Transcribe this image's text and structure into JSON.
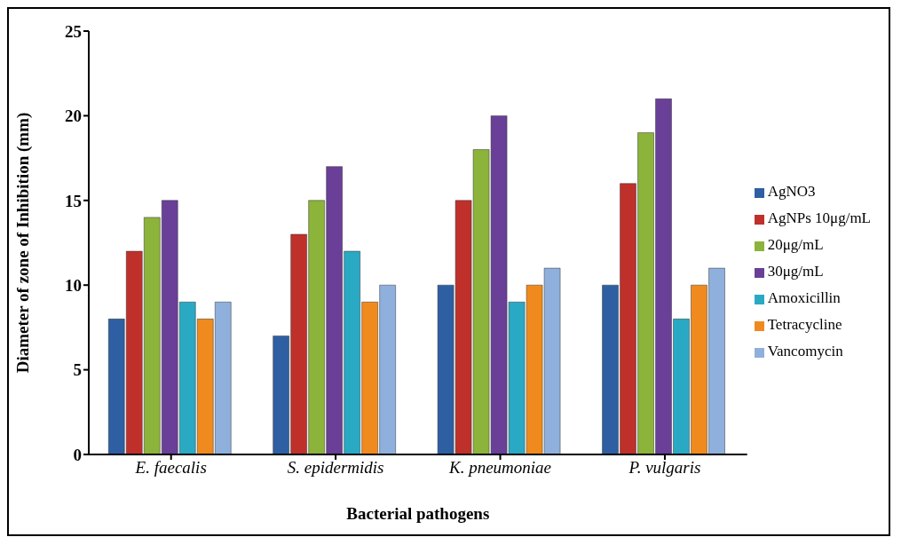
{
  "chart_data": {
    "type": "bar",
    "xlabel": "Bacterial pathogens",
    "ylabel": "Diameter of zone of Inhibition (mm)",
    "categories": [
      "E. faecalis",
      "S. epidermidis",
      "K. pneumoniae",
      "P. vulgaris"
    ],
    "series": [
      {
        "name": "AgNO3",
        "color": "#2e5fa3",
        "values": [
          8,
          7,
          10,
          10
        ]
      },
      {
        "name": "AgNPs 10μg/mL",
        "color": "#c0302b",
        "values": [
          12,
          13,
          15,
          16
        ]
      },
      {
        "name": "20μg/mL",
        "color": "#8cb33a",
        "values": [
          14,
          15,
          18,
          19
        ]
      },
      {
        "name": "30μg/mL",
        "color": "#6a3f98",
        "values": [
          15,
          17,
          20,
          21
        ]
      },
      {
        "name": "Amoxicillin",
        "color": "#2aa9c4",
        "values": [
          9,
          12,
          9,
          8
        ]
      },
      {
        "name": "Tetracycline",
        "color": "#f08a1e",
        "values": [
          8,
          9,
          10,
          10
        ]
      },
      {
        "name": "Vancomycin",
        "color": "#8fb0dc",
        "values": [
          9,
          10,
          11,
          11
        ]
      }
    ],
    "ylim": [
      0,
      25
    ],
    "yticks": [
      0,
      5,
      10,
      15,
      20,
      25
    ],
    "grid": false,
    "legend": "right"
  }
}
